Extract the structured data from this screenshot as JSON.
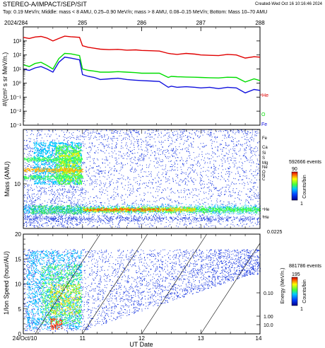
{
  "header": {
    "title": "STEREO-A/IMPACT/SEP/SIT",
    "created": "Created-Wed Oct 16 10:16:46 2024",
    "subtitle": "Top: 0.19 MeV/n; Middle: mass < 8 AMU, 0.25–0.90 MeV/n; mass > 8 AMU, 0.08–0.15 MeV/n; Bottom: Mass 10–70 AMU"
  },
  "colors": {
    "He4": "#e00000",
    "O": "#00dd00",
    "Fe": "#1010dd",
    "axis": "#000000"
  },
  "chart_data": [
    {
      "type": "line",
      "panel": "top",
      "doy_labels": [
        "2024/284",
        "285",
        "286",
        "287",
        "288"
      ],
      "ylabel": "#/(cm² s sr MeV/n.)",
      "yscale": "log",
      "ylim": [
        0.001,
        10000
      ],
      "ytick_labels": [
        "10³",
        "10²",
        "10¹",
        "10⁰",
        "10⁻¹",
        "10⁻²",
        "10⁻³"
      ],
      "x": [
        10.0,
        10.1,
        10.2,
        10.3,
        10.4,
        10.5,
        10.6,
        10.7,
        10.8,
        10.95,
        11.0,
        11.1,
        11.2,
        11.3,
        11.45,
        11.6,
        11.75,
        11.9,
        12.0,
        12.15,
        12.3,
        12.45,
        12.5,
        12.6,
        12.75,
        12.9,
        13.0,
        13.15,
        13.3,
        13.45,
        13.6,
        13.75,
        13.9,
        14.0
      ],
      "series": [
        {
          "name": "⁴He",
          "color_key": "He4",
          "values": [
            1800,
            1500,
            1900,
            2100,
            1600,
            1000,
            1500,
            2200,
            2000,
            1800,
            450,
            350,
            300,
            260,
            240,
            250,
            220,
            230,
            210,
            200,
            190,
            130,
            120,
            110,
            130,
            115,
            100,
            95,
            90,
            110,
            100,
            60,
            75,
            70
          ]
        },
        {
          "name": "O",
          "color_key": "O",
          "values": [
            20,
            15,
            25,
            30,
            18,
            10,
            55,
            130,
            120,
            90,
            10,
            8,
            7,
            6,
            6,
            6.5,
            6,
            5.5,
            5,
            5,
            5,
            2.5,
            3,
            2.8,
            2.7,
            2.6,
            2.5,
            2.4,
            2.3,
            2.6,
            2.5,
            1.2,
            2,
            1.5
          ]
        },
        {
          "name": "Fe",
          "color_key": "Fe",
          "values": [
            10,
            8,
            12,
            15,
            10,
            6,
            30,
            70,
            60,
            45,
            4,
            3,
            2.5,
            1.8,
            2,
            2.2,
            1.8,
            1.6,
            1.5,
            1.4,
            1.3,
            0.5,
            0.6,
            0.5,
            0.55,
            0.5,
            0.45,
            0.5,
            0.4,
            0.5,
            0.45,
            0.2,
            0.35,
            0.3
          ]
        }
      ]
    },
    {
      "type": "heatmap",
      "panel": "middle",
      "ylabel": "Mass (AMU)",
      "ytick_label": "10",
      "events_label": "592666 events",
      "colorbar_max": "90",
      "colorbar_min": "1",
      "colorbar_label": "Counts/bin",
      "species_labels": [
        "Fe",
        "Ca",
        "Si",
        "S",
        "Mg",
        "Ne",
        "O",
        "N",
        "C",
        "⁴He",
        "³He"
      ]
    },
    {
      "type": "heatmap",
      "panel": "bottom",
      "ylabel": "1/Ion Speed (hour/AU)",
      "xlabel": "UT Date",
      "x_ticks": [
        "24/Oct/10",
        "11",
        "12",
        "13",
        "14"
      ],
      "ylim": [
        0,
        20
      ],
      "y_ticks": [
        "0",
        "5",
        "10",
        "15",
        "20"
      ],
      "energy_label": "Energy (MeV/n.)",
      "energy_ticks": [
        "0.0225",
        "0.10",
        "1.00",
        "10.0"
      ],
      "events_label": "881786 events",
      "colorbar_max": "195",
      "colorbar_min": "1",
      "colorbar_label": "Counts/bin"
    }
  ]
}
